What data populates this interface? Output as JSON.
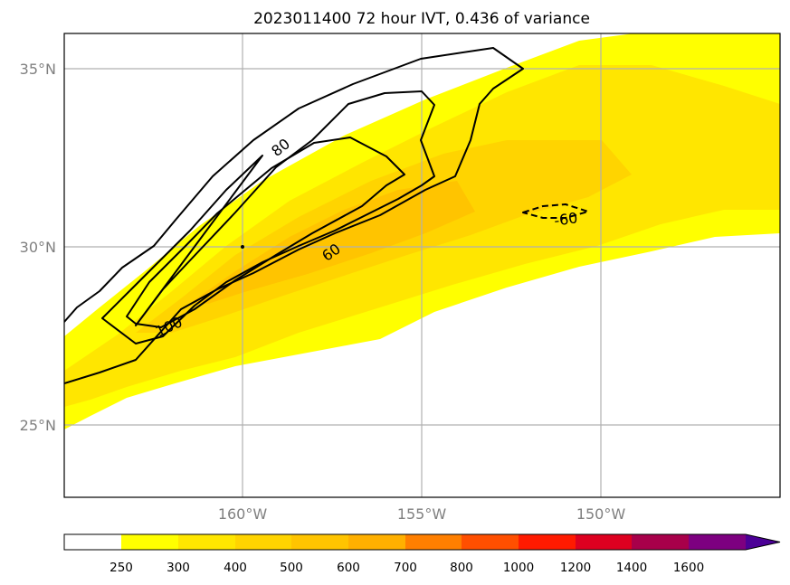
{
  "title": "2023011400 72 hour IVT, 0.436 of variance",
  "map": {
    "lon_range": [
      -165,
      -145
    ],
    "lat_range": [
      23,
      36
    ],
    "gridlines": true,
    "lon_ticks": [
      {
        "value": -160,
        "label": "160°W"
      },
      {
        "value": -155,
        "label": "155°W"
      },
      {
        "value": -150,
        "label": "150°W"
      }
    ],
    "lat_ticks": [
      {
        "value": 35,
        "label": "35°N"
      },
      {
        "value": 30,
        "label": "30°N"
      },
      {
        "value": 25,
        "label": "25°N"
      }
    ]
  },
  "colorbar": {
    "levels": [
      "250",
      "300",
      "400",
      "500",
      "600",
      "700",
      "800",
      "1000",
      "1200",
      "1400",
      "1600"
    ],
    "colors": [
      "#ffffff",
      "#ffff00",
      "#ffe600",
      "#ffd400",
      "#ffc400",
      "#ffb000",
      "#ff7f00",
      "#ff4f00",
      "#ff1a00",
      "#dd0020",
      "#a8004a",
      "#7d0080",
      "#4b0096"
    ],
    "extend": "max"
  },
  "contour_labels": [
    {
      "text": "80",
      "lon": -154,
      "lat": 33.5
    },
    {
      "text": "60",
      "lon": -157.5,
      "lat": 30
    },
    {
      "text": "100",
      "lon": -163,
      "lat": 28
    },
    {
      "text": "-60",
      "lon": -150.5,
      "lat": 30.8
    }
  ]
}
